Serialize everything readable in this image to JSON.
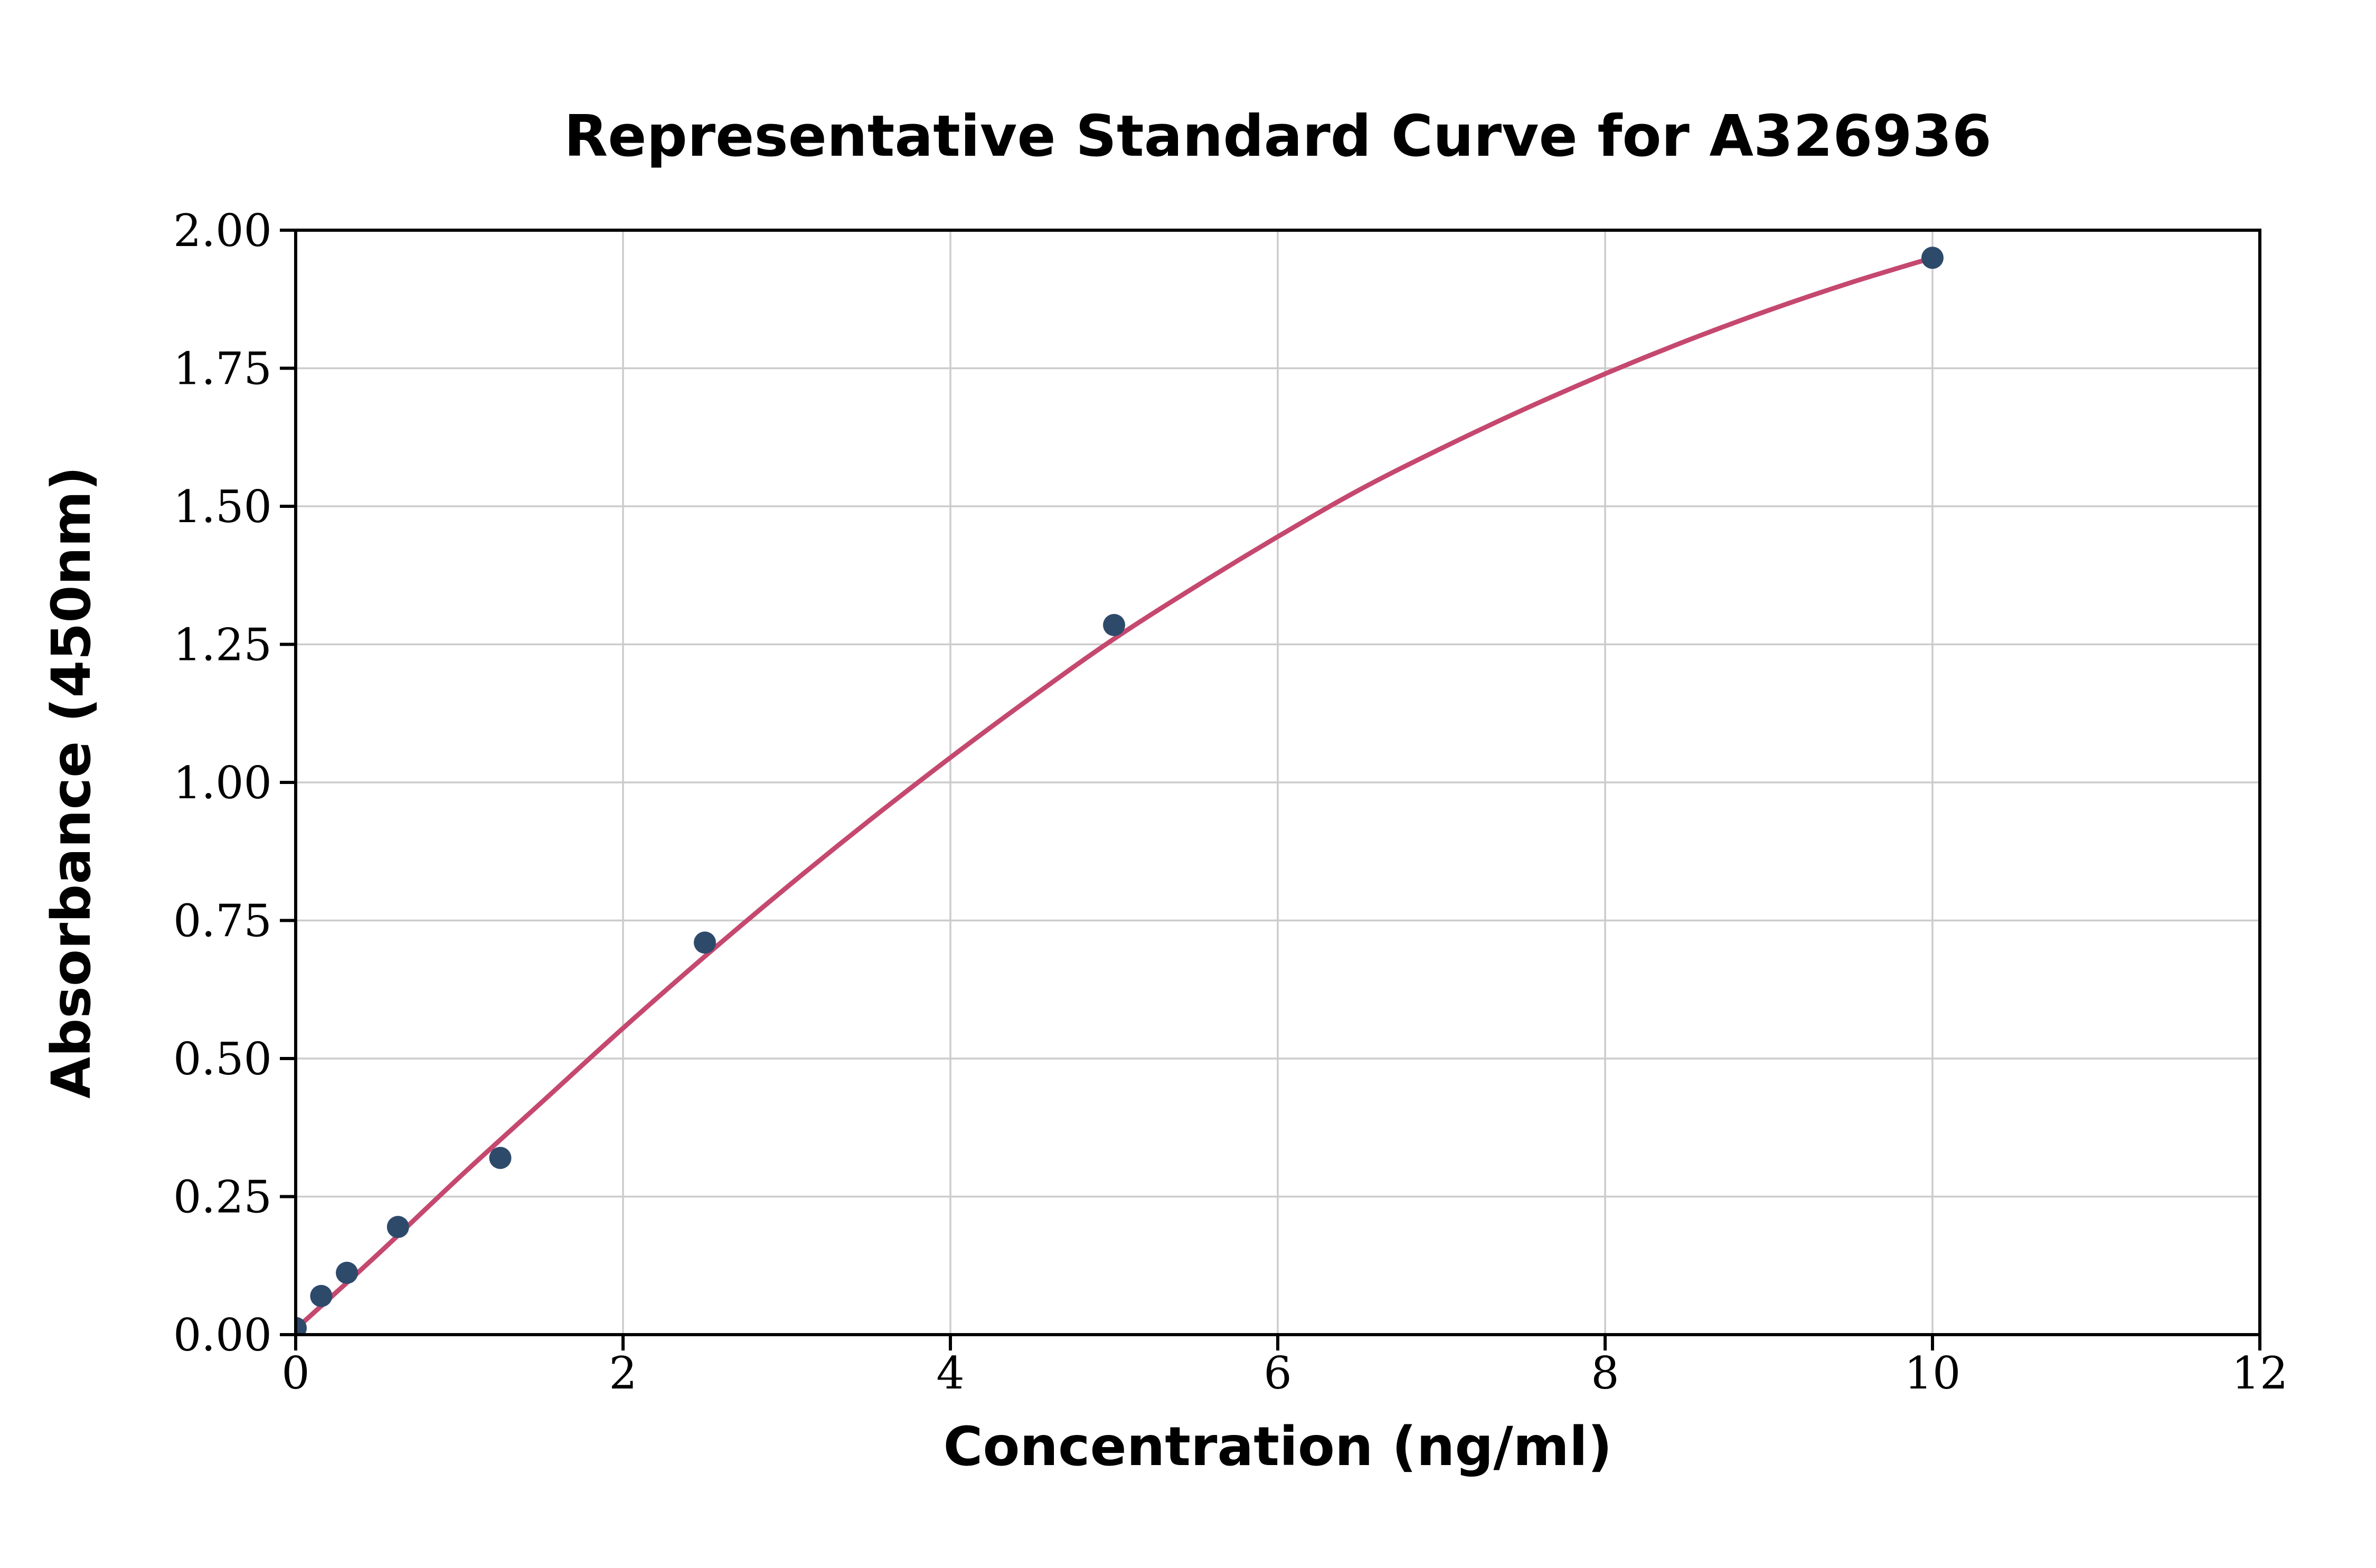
{
  "page": {
    "background_color": "#ffffff"
  },
  "chart_data": {
    "type": "scatter",
    "title": "Representative Standard Curve for A326936",
    "xlabel": "Concentration (ng/ml)",
    "ylabel": "Absorbance (450nm)",
    "xlim": [
      0,
      12
    ],
    "ylim": [
      0,
      2.0
    ],
    "xticks": [
      0,
      2,
      4,
      6,
      8,
      10,
      12
    ],
    "xtick_labels": [
      "0",
      "2",
      "4",
      "6",
      "8",
      "10",
      "12"
    ],
    "yticks": [
      0,
      0.25,
      0.5,
      0.75,
      1.0,
      1.25,
      1.5,
      1.75,
      2.0
    ],
    "ytick_labels": [
      "0.00",
      "0.25",
      "0.50",
      "0.75",
      "1.00",
      "1.25",
      "1.50",
      "1.75",
      "2.00"
    ],
    "grid": true,
    "grid_color": "#cccccc",
    "axis_color": "#000000",
    "legend": "none",
    "series": [
      {
        "name": "standard-points",
        "type": "scatter",
        "color": "#2e4a6b",
        "points": [
          [
            0,
            0.012
          ],
          [
            0.156,
            0.07
          ],
          [
            0.313,
            0.112
          ],
          [
            0.625,
            0.195
          ],
          [
            1.25,
            0.32
          ],
          [
            2.5,
            0.71
          ],
          [
            5,
            1.285
          ],
          [
            10,
            1.95
          ]
        ]
      },
      {
        "name": "fitted-curve",
        "type": "line",
        "color": "#c5486f",
        "points": [
          [
            0,
            0.01
          ],
          [
            0.5,
            0.145
          ],
          [
            1.0,
            0.285
          ],
          [
            1.5,
            0.42
          ],
          [
            2.0,
            0.555
          ],
          [
            2.5,
            0.685
          ],
          [
            3.0,
            0.81
          ],
          [
            3.5,
            0.93
          ],
          [
            4.0,
            1.045
          ],
          [
            4.5,
            1.155
          ],
          [
            5.0,
            1.26
          ],
          [
            5.5,
            1.355
          ],
          [
            6.0,
            1.445
          ],
          [
            6.5,
            1.53
          ],
          [
            7.0,
            1.605
          ],
          [
            7.5,
            1.675
          ],
          [
            8.0,
            1.74
          ],
          [
            8.5,
            1.8
          ],
          [
            9.0,
            1.855
          ],
          [
            9.5,
            1.905
          ],
          [
            10.0,
            1.95
          ]
        ]
      }
    ]
  }
}
